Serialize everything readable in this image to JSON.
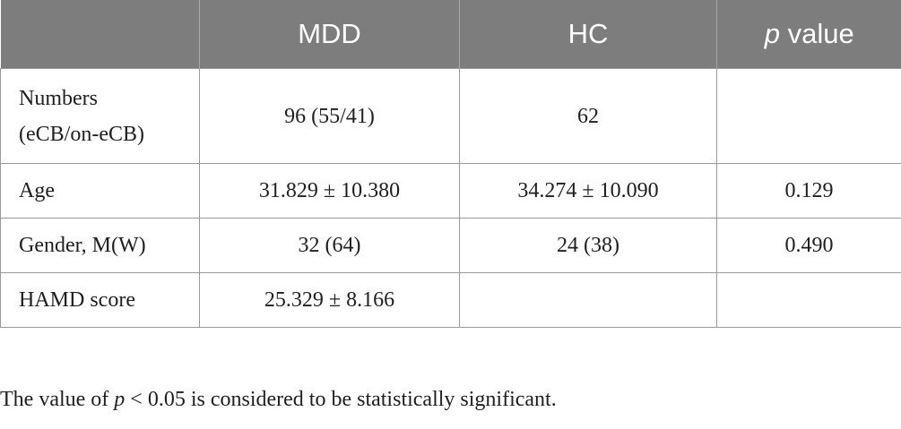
{
  "table": {
    "headers": [
      "",
      "MDD",
      "HC",
      "value"
    ],
    "header_p": "p",
    "rows": [
      {
        "label_line1": "Numbers",
        "label_line2": "(eCB/on-eCB)",
        "mdd": "96 (55/41)",
        "hc": "62",
        "p_value": ""
      },
      {
        "label": "Age",
        "mdd": "31.829 ± 10.380",
        "hc": "34.274 ± 10.090",
        "p_value": "0.129"
      },
      {
        "label": "Gender, M(W)",
        "mdd": "32 (64)",
        "hc": "24 (38)",
        "p_value": "0.490"
      },
      {
        "label": "HAMD score",
        "mdd": "25.329 ± 8.166",
        "hc": "",
        "p_value": ""
      }
    ]
  },
  "footnote": {
    "before": "The value of ",
    "p": "p",
    "after": " < 0.05 is considered to be statistically significant."
  },
  "colors": {
    "header_background": "#7d7d7d",
    "header_text": "#ffffff",
    "grid_lines": "#9a9a9a"
  }
}
